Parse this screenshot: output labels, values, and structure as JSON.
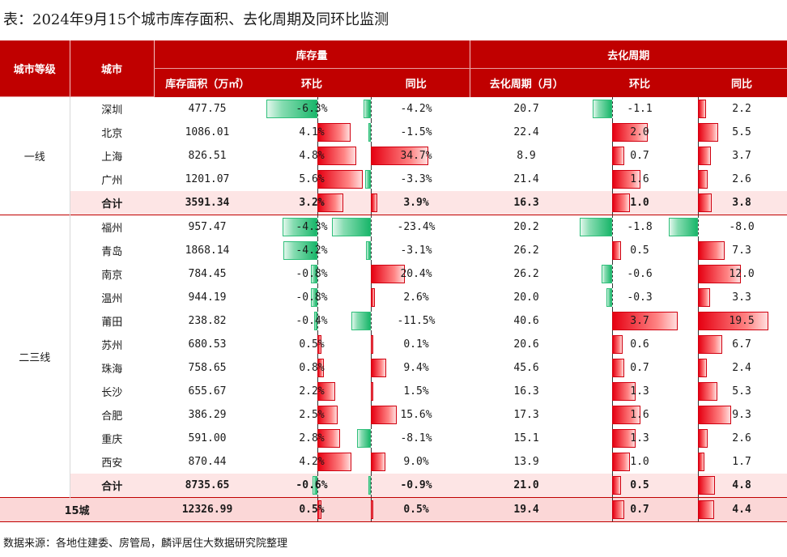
{
  "title": "表：2024年9月15个城市库存面积、去化周期及同环比监测",
  "source": "数据来源：各地住建委、房管局，麟评居住大数据研究院整理",
  "header": {
    "tier": "城市等级",
    "city": "城市",
    "group_inventory": "库存量",
    "group_cycle": "去化周期",
    "inv_area": "库存面积（万㎡）",
    "inv_mom": "环比",
    "inv_yoy": "同比",
    "cycle": "去化周期（月）",
    "cycle_mom": "环比",
    "cycle_yoy": "同比"
  },
  "groups": [
    {
      "tier": "一线",
      "rows": [
        {
          "city": "深圳",
          "area": "477.75",
          "inv_mom": "-6.3%",
          "inv_yoy": "-4.2%",
          "cycle": "20.7",
          "cycle_mom": "-1.1",
          "cycle_yoy": "2.2"
        },
        {
          "city": "北京",
          "area": "1086.01",
          "inv_mom": "4.1%",
          "inv_yoy": "-1.5%",
          "cycle": "22.4",
          "cycle_mom": "2.0",
          "cycle_yoy": "5.5"
        },
        {
          "city": "上海",
          "area": "826.51",
          "inv_mom": "4.8%",
          "inv_yoy": "34.7%",
          "cycle": "8.9",
          "cycle_mom": "0.7",
          "cycle_yoy": "3.7"
        },
        {
          "city": "广州",
          "area": "1201.07",
          "inv_mom": "5.6%",
          "inv_yoy": "-3.3%",
          "cycle": "21.4",
          "cycle_mom": "1.6",
          "cycle_yoy": "2.6"
        }
      ],
      "subtotal": {
        "city": "合计",
        "area": "3591.34",
        "inv_mom": "3.2%",
        "inv_yoy": "3.9%",
        "cycle": "16.3",
        "cycle_mom": "1.0",
        "cycle_yoy": "3.8"
      }
    },
    {
      "tier": "二三线",
      "rows": [
        {
          "city": "福州",
          "area": "957.47",
          "inv_mom": "-4.3%",
          "inv_yoy": "-23.4%",
          "cycle": "20.2",
          "cycle_mom": "-1.8",
          "cycle_yoy": "-8.0"
        },
        {
          "city": "青岛",
          "area": "1868.14",
          "inv_mom": "-4.2%",
          "inv_yoy": "-3.1%",
          "cycle": "26.2",
          "cycle_mom": "0.5",
          "cycle_yoy": "7.3"
        },
        {
          "city": "南京",
          "area": "784.45",
          "inv_mom": "-0.8%",
          "inv_yoy": "20.4%",
          "cycle": "26.2",
          "cycle_mom": "-0.6",
          "cycle_yoy": "12.0"
        },
        {
          "city": "温州",
          "area": "944.19",
          "inv_mom": "-0.8%",
          "inv_yoy": "2.6%",
          "cycle": "20.0",
          "cycle_mom": "-0.3",
          "cycle_yoy": "3.3"
        },
        {
          "city": "莆田",
          "area": "238.82",
          "inv_mom": "-0.4%",
          "inv_yoy": "-11.5%",
          "cycle": "40.6",
          "cycle_mom": "3.7",
          "cycle_yoy": "19.5"
        },
        {
          "city": "苏州",
          "area": "680.53",
          "inv_mom": "0.5%",
          "inv_yoy": "0.1%",
          "cycle": "20.6",
          "cycle_mom": "0.6",
          "cycle_yoy": "6.7"
        },
        {
          "city": "珠海",
          "area": "758.65",
          "inv_mom": "0.8%",
          "inv_yoy": "9.4%",
          "cycle": "45.6",
          "cycle_mom": "0.7",
          "cycle_yoy": "2.4"
        },
        {
          "city": "长沙",
          "area": "655.67",
          "inv_mom": "2.2%",
          "inv_yoy": "1.5%",
          "cycle": "16.3",
          "cycle_mom": "1.3",
          "cycle_yoy": "5.3"
        },
        {
          "city": "合肥",
          "area": "386.29",
          "inv_mom": "2.5%",
          "inv_yoy": "15.6%",
          "cycle": "17.3",
          "cycle_mom": "1.6",
          "cycle_yoy": "9.3"
        },
        {
          "city": "重庆",
          "area": "591.00",
          "inv_mom": "2.8%",
          "inv_yoy": "-8.1%",
          "cycle": "15.1",
          "cycle_mom": "1.3",
          "cycle_yoy": "2.6"
        },
        {
          "city": "西安",
          "area": "870.44",
          "inv_mom": "4.2%",
          "inv_yoy": "9.0%",
          "cycle": "13.9",
          "cycle_mom": "1.0",
          "cycle_yoy": "1.7"
        }
      ],
      "subtotal": {
        "city": "合计",
        "area": "8735.65",
        "inv_mom": "-0.6%",
        "inv_yoy": "-0.9%",
        "cycle": "21.0",
        "cycle_mom": "0.5",
        "cycle_yoy": "4.8"
      }
    }
  ],
  "total": {
    "label": "15城",
    "area": "12326.99",
    "inv_mom": "0.5%",
    "inv_yoy": "0.5%",
    "cycle": "19.4",
    "cycle_mom": "0.7",
    "cycle_yoy": "4.4"
  },
  "colors": {
    "header_bg": "#c00000",
    "positive_bar": "#e60012",
    "negative_bar": "#19b66a",
    "subtotal_bg": "#fde5e5"
  }
}
